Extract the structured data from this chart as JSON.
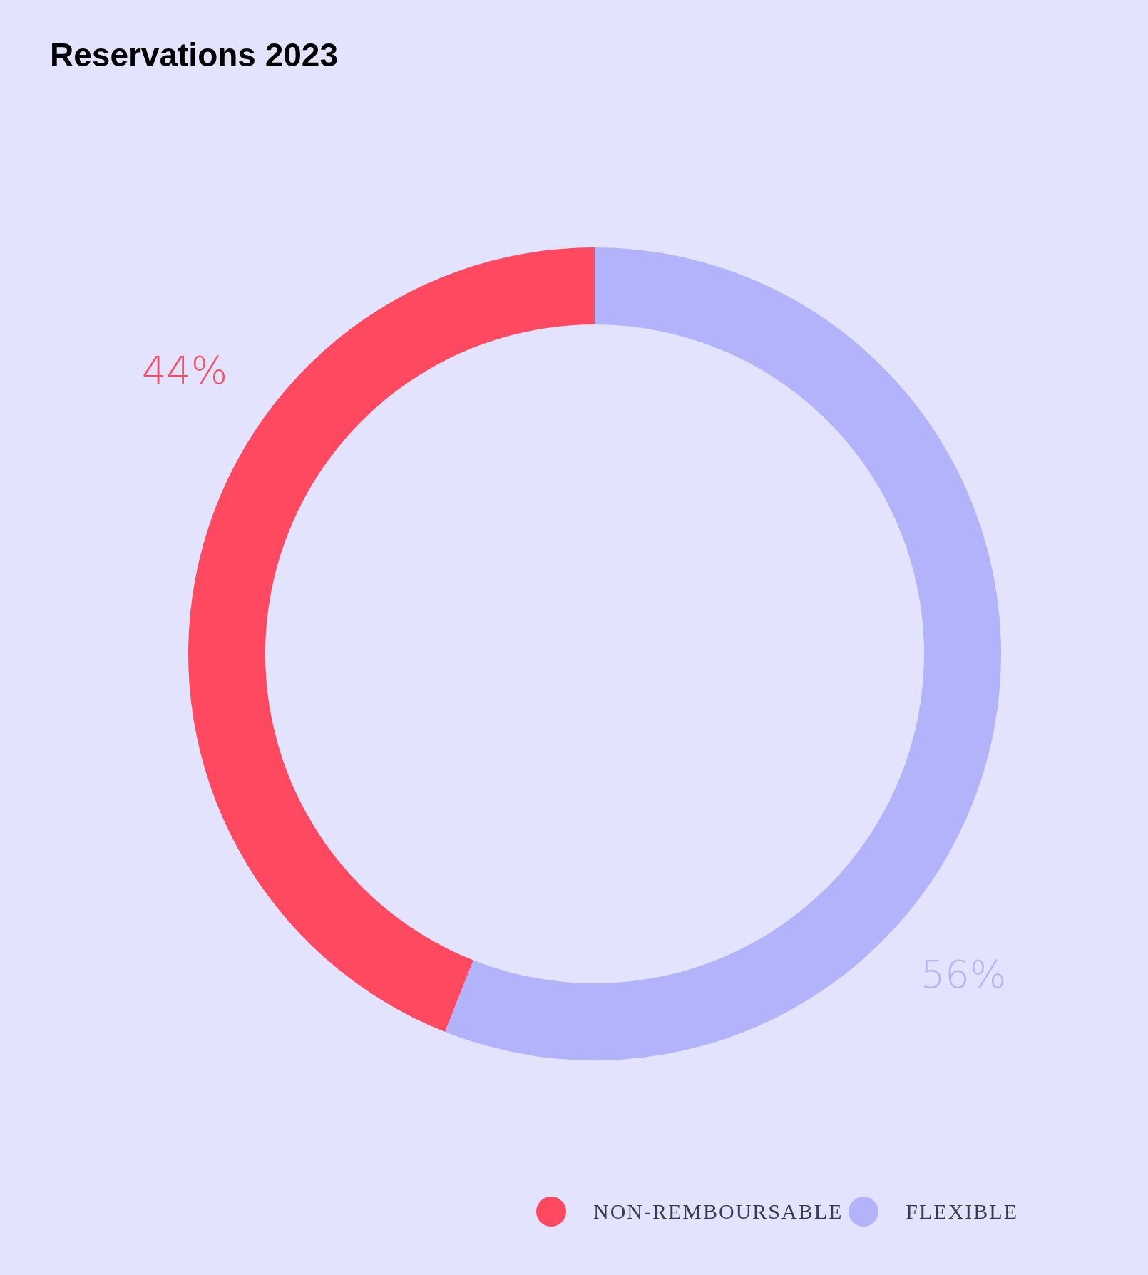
{
  "chart_data": {
    "type": "donut",
    "title": "Reservations 2023",
    "categories": [
      "NON-REMBOURSABLE",
      "FLEXIBLE"
    ],
    "values": [
      44,
      56
    ],
    "colors": [
      "#ff4961",
      "#b3b3fc"
    ],
    "value_labels": [
      "44%",
      "56%"
    ],
    "legend": "bottom"
  }
}
